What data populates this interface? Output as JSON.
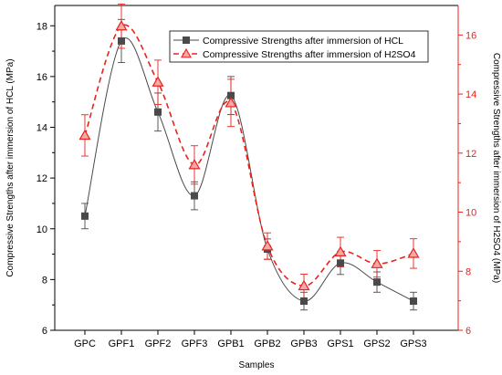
{
  "chart_data": {
    "type": "line",
    "categories": [
      "GPC",
      "GPF1",
      "GPF2",
      "GPF3",
      "GPB1",
      "GPB2",
      "GPB3",
      "GPS1",
      "GPS2",
      "GPS3"
    ],
    "xlabel": "Samples",
    "ylabel_left": "Compressive Strengths after immersion of HCL (MPa)",
    "ylabel_right": "Compressive Strengths after immersion of H2SO4 (MPa)",
    "ylim_left": [
      6,
      18.8
    ],
    "yticks_left": [
      6,
      8,
      10,
      12,
      14,
      16,
      18
    ],
    "ylim_right": [
      6,
      17
    ],
    "yticks_right": [
      6,
      8,
      10,
      12,
      14,
      16
    ],
    "grid": false,
    "legend_position": "top-right",
    "series": [
      {
        "name": "Compressive Strengths after immersion of HCL",
        "axis": "left",
        "color": "#4a4a4a",
        "marker": "square",
        "line_style": "solid",
        "values": [
          10.5,
          17.4,
          14.6,
          11.3,
          15.25,
          9.2,
          7.15,
          8.65,
          7.9,
          7.15
        ],
        "errors": [
          0.5,
          0.85,
          0.75,
          0.55,
          0.75,
          0.4,
          0.35,
          0.45,
          0.4,
          0.35
        ]
      },
      {
        "name": "Compressive Strengths after immersion of H2SO4",
        "axis": "right",
        "color": "#e8231e",
        "marker": "triangle",
        "line_style": "dashed",
        "values": [
          12.6,
          16.3,
          14.4,
          11.6,
          13.7,
          8.85,
          7.5,
          8.65,
          8.25,
          8.6
        ],
        "errors": [
          0.7,
          0.75,
          0.75,
          0.65,
          0.8,
          0.45,
          0.4,
          0.5,
          0.45,
          0.5
        ]
      }
    ]
  }
}
